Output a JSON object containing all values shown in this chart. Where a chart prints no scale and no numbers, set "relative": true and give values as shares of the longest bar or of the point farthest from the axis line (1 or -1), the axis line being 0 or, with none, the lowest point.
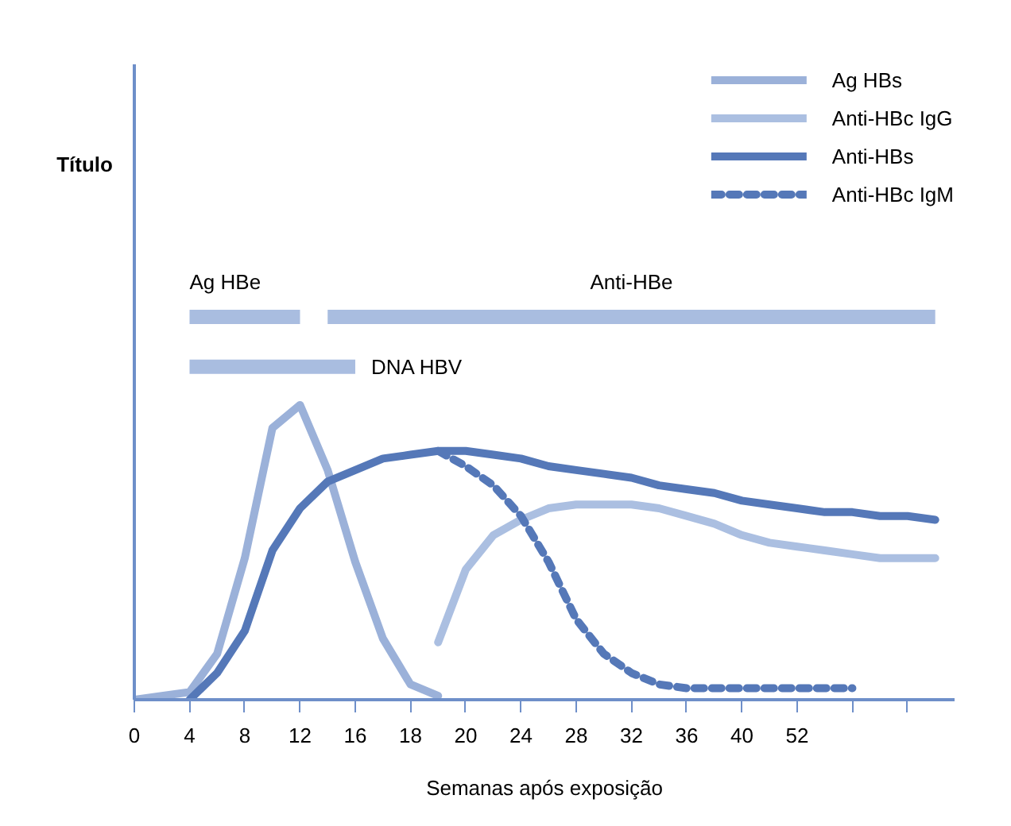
{
  "chart_data": {
    "type": "line",
    "relative": true,
    "xlabel": "Semanas após exposição",
    "categories": [
      "0",
      null,
      "4",
      null,
      "8",
      null,
      "12",
      null,
      "16",
      null,
      "18",
      null,
      "20",
      null,
      "24",
      null,
      "28",
      null,
      "32",
      null,
      "36",
      null,
      "40",
      null,
      "52",
      null,
      null,
      null,
      null,
      null
    ],
    "grid": false,
    "legend": "top right",
    "line_style": "solid",
    "series": [
      {
        "color": "#a9bde0",
        "values": [
          null,
          null,
          1.0,
          1.0,
          1.0,
          1.0,
          1.0,
          null,
          null,
          null,
          null,
          null,
          null,
          null,
          null,
          null,
          null,
          null,
          null,
          null,
          null,
          null,
          null,
          null,
          null,
          null,
          null,
          null,
          null,
          null
        ]
      },
      {
        "color": "#a9bde0",
        "values": [
          null,
          null,
          null,
          null,
          null,
          null,
          null,
          1.0,
          1.0,
          1.0,
          1.0,
          1.0,
          1.0,
          1.0,
          1.0,
          1.0,
          1.0,
          1.0,
          1.0,
          1.0,
          1.0,
          1.0,
          1.0,
          1.0,
          1.0,
          1.0,
          1.0,
          1.0,
          1.0,
          1.0
        ]
      },
      {
        "color": "#a9bde0",
        "values": [
          null,
          null,
          0.87,
          0.87,
          0.87,
          0.87,
          0.87,
          0.87,
          0.87,
          null,
          null,
          null,
          null,
          null,
          null,
          null,
          null,
          null,
          null,
          null,
          null,
          null,
          null,
          null,
          null,
          null,
          null,
          null,
          null,
          null
        ]
      },
      {
        "name": "Ag HBs",
        "color": "#9bb1d9",
        "values": [
          0.0,
          0.01,
          0.02,
          0.12,
          0.37,
          0.71,
          0.77,
          0.6,
          0.36,
          0.16,
          0.04,
          0.01,
          null,
          null,
          null,
          null,
          null,
          null,
          null,
          null,
          null,
          null,
          null,
          null,
          null,
          null,
          null,
          null,
          null,
          null
        ]
      },
      {
        "name": "Anti-HBc IgG",
        "color": "#abbfe1",
        "values": [
          null,
          null,
          null,
          null,
          null,
          null,
          null,
          null,
          null,
          null,
          null,
          0.15,
          0.34,
          0.43,
          0.47,
          0.5,
          0.51,
          0.51,
          0.51,
          0.5,
          0.48,
          0.46,
          0.43,
          0.41,
          0.4,
          0.39,
          0.38,
          0.37,
          0.37,
          0.37
        ]
      },
      {
        "name": "Anti-HBs",
        "color": "#5578b8",
        "values": [
          null,
          null,
          0.0,
          0.07,
          0.18,
          0.39,
          0.5,
          0.57,
          0.6,
          0.63,
          0.64,
          0.65,
          0.65,
          0.64,
          0.63,
          0.61,
          0.6,
          0.59,
          0.58,
          0.56,
          0.55,
          0.54,
          0.52,
          0.51,
          0.5,
          0.49,
          0.49,
          0.48,
          0.48,
          0.47
        ]
      },
      {
        "name": "Anti-HBc IgM",
        "color": "#5578b8",
        "line_style": "dashed",
        "values": [
          null,
          null,
          null,
          null,
          null,
          null,
          null,
          null,
          null,
          null,
          null,
          0.65,
          0.61,
          0.56,
          0.48,
          0.36,
          0.21,
          0.12,
          0.07,
          0.04,
          0.03,
          0.03,
          0.03,
          0.03,
          0.03,
          0.03,
          0.03,
          null,
          null,
          null
        ]
      }
    ],
    "annotations": [
      "Ag HBe",
      "Anti-HBe",
      "DNA HBV",
      "Título"
    ]
  }
}
